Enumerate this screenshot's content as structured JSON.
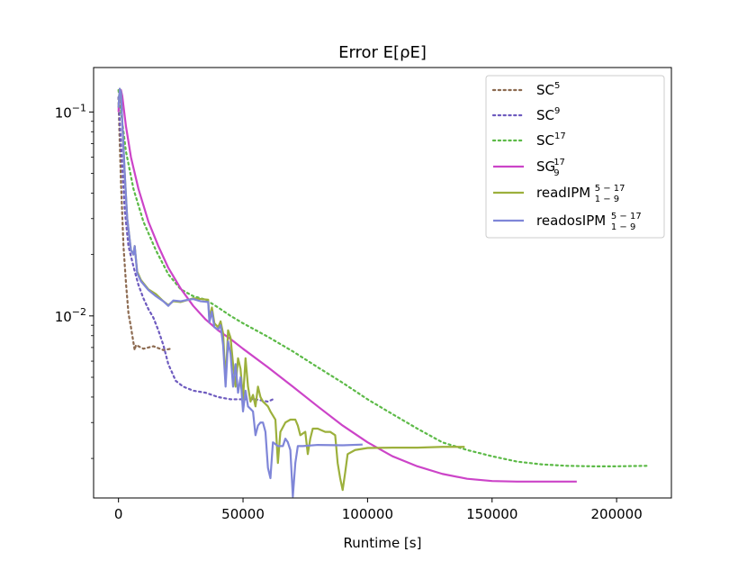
{
  "chart_data": {
    "type": "line",
    "title": "Error E[ρE]",
    "xlabel": "Runtime [s]",
    "ylabel": "",
    "xlim": [
      -10000,
      222000
    ],
    "ylim": [
      0.00128,
      0.1652
    ],
    "yscale": "log",
    "grid": false,
    "legend_position": "top-right",
    "x_ticks": [
      0,
      50000,
      100000,
      150000,
      200000
    ],
    "x_tick_labels": [
      "0",
      "50000",
      "100000",
      "150000",
      "200000"
    ],
    "y_ticks": [
      0.1,
      0.01
    ],
    "y_tick_labels": [
      {
        "base": "10",
        "exp": "−1"
      },
      {
        "base": "10",
        "exp": "−2"
      }
    ],
    "series": [
      {
        "name": "SC",
        "sup": "5",
        "sub": "",
        "color": "#8c6a50",
        "style": "dotted",
        "points": [
          [
            0,
            0.118
          ],
          [
            300,
            0.085
          ],
          [
            1000,
            0.045
          ],
          [
            2000,
            0.022
          ],
          [
            3000,
            0.0145
          ],
          [
            4000,
            0.0103
          ],
          [
            5000,
            0.0088
          ],
          [
            6000,
            0.0074
          ],
          [
            6500,
            0.0068
          ],
          [
            7000,
            0.0072
          ],
          [
            8000,
            0.0071
          ],
          [
            10000,
            0.0069
          ],
          [
            14000,
            0.0071
          ],
          [
            18000,
            0.0068
          ],
          [
            21000,
            0.0069
          ]
        ]
      },
      {
        "name": "SC",
        "sup": "9",
        "sub": "",
        "color": "#6e5bbf",
        "style": "dotted",
        "points": [
          [
            0,
            0.118
          ],
          [
            500,
            0.09
          ],
          [
            1500,
            0.055
          ],
          [
            2500,
            0.033
          ],
          [
            4000,
            0.022
          ],
          [
            6000,
            0.0175
          ],
          [
            8000,
            0.0142
          ],
          [
            10000,
            0.0122
          ],
          [
            12000,
            0.0108
          ],
          [
            14000,
            0.0098
          ],
          [
            16000,
            0.0085
          ],
          [
            18000,
            0.0072
          ],
          [
            20000,
            0.0058
          ],
          [
            23000,
            0.0048
          ],
          [
            26000,
            0.0045
          ],
          [
            30000,
            0.0043
          ],
          [
            35000,
            0.0042
          ],
          [
            40000,
            0.004
          ],
          [
            45000,
            0.0039
          ],
          [
            50000,
            0.0039
          ],
          [
            55000,
            0.0039
          ],
          [
            60000,
            0.0038
          ],
          [
            62000,
            0.0039
          ]
        ]
      },
      {
        "name": "SC",
        "sup": "17",
        "sub": "",
        "color": "#5cba47",
        "style": "dotted",
        "points": [
          [
            0,
            0.128
          ],
          [
            1000,
            0.1
          ],
          [
            3000,
            0.064
          ],
          [
            6000,
            0.042
          ],
          [
            10000,
            0.029
          ],
          [
            15000,
            0.021
          ],
          [
            20000,
            0.016
          ],
          [
            25000,
            0.0135
          ],
          [
            30000,
            0.0125
          ],
          [
            35000,
            0.012
          ],
          [
            40000,
            0.011
          ],
          [
            45000,
            0.01
          ],
          [
            50000,
            0.0092
          ],
          [
            60000,
            0.0079
          ],
          [
            70000,
            0.0067
          ],
          [
            80000,
            0.0056
          ],
          [
            90000,
            0.0047
          ],
          [
            100000,
            0.0039
          ],
          [
            110000,
            0.0033
          ],
          [
            120000,
            0.0028
          ],
          [
            130000,
            0.0024
          ],
          [
            140000,
            0.0022
          ],
          [
            150000,
            0.00205
          ],
          [
            160000,
            0.00193
          ],
          [
            170000,
            0.00187
          ],
          [
            180000,
            0.00184
          ],
          [
            190000,
            0.00183
          ],
          [
            200000,
            0.00183
          ],
          [
            212000,
            0.00184
          ]
        ]
      },
      {
        "name": "SG",
        "sup": "17",
        "sub": "9",
        "color": "#cc44c8",
        "style": "solid",
        "points": [
          [
            0,
            0.1
          ],
          [
            500,
            0.125
          ],
          [
            1000,
            0.128
          ],
          [
            1500,
            0.12
          ],
          [
            3000,
            0.085
          ],
          [
            5000,
            0.06
          ],
          [
            8000,
            0.042
          ],
          [
            12000,
            0.029
          ],
          [
            16000,
            0.022
          ],
          [
            20000,
            0.0172
          ],
          [
            25000,
            0.0136
          ],
          [
            30000,
            0.0112
          ],
          [
            35000,
            0.0096
          ],
          [
            40000,
            0.0085
          ],
          [
            45000,
            0.0077
          ],
          [
            50000,
            0.0069
          ],
          [
            60000,
            0.0056
          ],
          [
            70000,
            0.0045
          ],
          [
            80000,
            0.0036
          ],
          [
            90000,
            0.0029
          ],
          [
            100000,
            0.0024
          ],
          [
            110000,
            0.00205
          ],
          [
            120000,
            0.00183
          ],
          [
            130000,
            0.00168
          ],
          [
            140000,
            0.00159
          ],
          [
            150000,
            0.00155
          ],
          [
            160000,
            0.00154
          ],
          [
            170000,
            0.00154
          ],
          [
            184000,
            0.00154
          ]
        ]
      },
      {
        "name": "readIPM",
        "sup": "5 − 17",
        "sub": "1 − 9",
        "color": "#9cb03c",
        "style": "solid",
        "points": [
          [
            0,
            0.105
          ],
          [
            500,
            0.13
          ],
          [
            1000,
            0.125
          ],
          [
            1500,
            0.09
          ],
          [
            2500,
            0.05
          ],
          [
            3500,
            0.03
          ],
          [
            5000,
            0.021
          ],
          [
            6000,
            0.02
          ],
          [
            6500,
            0.022
          ],
          [
            7500,
            0.0165
          ],
          [
            9000,
            0.015
          ],
          [
            12000,
            0.0135
          ],
          [
            15000,
            0.0128
          ],
          [
            18000,
            0.0118
          ],
          [
            20000,
            0.0113
          ],
          [
            22000,
            0.0118
          ],
          [
            25000,
            0.0117
          ],
          [
            28000,
            0.012
          ],
          [
            30000,
            0.0122
          ],
          [
            33000,
            0.0121
          ],
          [
            36000,
            0.012
          ],
          [
            36500,
            0.0097
          ],
          [
            37500,
            0.011
          ],
          [
            38500,
            0.0092
          ],
          [
            40000,
            0.0088
          ],
          [
            41000,
            0.0094
          ],
          [
            42000,
            0.0082
          ],
          [
            43000,
            0.0048
          ],
          [
            44000,
            0.0085
          ],
          [
            45000,
            0.0078
          ],
          [
            46000,
            0.0058
          ],
          [
            47000,
            0.0045
          ],
          [
            48000,
            0.0062
          ],
          [
            49000,
            0.0055
          ],
          [
            50000,
            0.0039
          ],
          [
            51000,
            0.0062
          ],
          [
            52000,
            0.0045
          ],
          [
            53000,
            0.0038
          ],
          [
            54000,
            0.0041
          ],
          [
            55000,
            0.0036
          ],
          [
            56000,
            0.0045
          ],
          [
            57000,
            0.004
          ],
          [
            58000,
            0.0038
          ],
          [
            59000,
            0.0037
          ],
          [
            60000,
            0.0036
          ],
          [
            61000,
            0.0034
          ],
          [
            63000,
            0.0031
          ],
          [
            64000,
            0.0019
          ],
          [
            65000,
            0.0027
          ],
          [
            67000,
            0.003
          ],
          [
            69000,
            0.0031
          ],
          [
            71000,
            0.0031
          ],
          [
            72000,
            0.0029
          ],
          [
            73000,
            0.0026
          ],
          [
            75000,
            0.0027
          ],
          [
            76000,
            0.0021
          ],
          [
            77000,
            0.0025
          ],
          [
            78000,
            0.0028
          ],
          [
            80000,
            0.0028
          ],
          [
            83000,
            0.0027
          ],
          [
            85000,
            0.0027
          ],
          [
            87000,
            0.0026
          ],
          [
            88000,
            0.0019
          ],
          [
            89000,
            0.0016
          ],
          [
            90000,
            0.0014
          ],
          [
            91000,
            0.0017
          ],
          [
            92000,
            0.0021
          ],
          [
            95000,
            0.0022
          ],
          [
            100000,
            0.00225
          ],
          [
            110000,
            0.00226
          ],
          [
            120000,
            0.00226
          ],
          [
            130000,
            0.00228
          ],
          [
            139000,
            0.00228
          ]
        ]
      },
      {
        "name": "readosIPM",
        "sup": "5 − 17",
        "sub": "1 − 9",
        "color": "#7f86d8",
        "style": "solid",
        "points": [
          [
            0,
            0.105
          ],
          [
            500,
            0.13
          ],
          [
            1000,
            0.125
          ],
          [
            1500,
            0.09
          ],
          [
            2500,
            0.05
          ],
          [
            3500,
            0.03
          ],
          [
            5000,
            0.021
          ],
          [
            6000,
            0.02
          ],
          [
            6500,
            0.022
          ],
          [
            7500,
            0.0162
          ],
          [
            9000,
            0.0148
          ],
          [
            12000,
            0.0134
          ],
          [
            15000,
            0.0125
          ],
          [
            18000,
            0.0118
          ],
          [
            20000,
            0.0112
          ],
          [
            22000,
            0.0119
          ],
          [
            25000,
            0.0118
          ],
          [
            28000,
            0.012
          ],
          [
            30000,
            0.0121
          ],
          [
            33000,
            0.0118
          ],
          [
            36000,
            0.0117
          ],
          [
            36500,
            0.0093
          ],
          [
            37500,
            0.0105
          ],
          [
            38500,
            0.0088
          ],
          [
            40000,
            0.0086
          ],
          [
            41000,
            0.009
          ],
          [
            42000,
            0.0072
          ],
          [
            43000,
            0.0045
          ],
          [
            44000,
            0.0075
          ],
          [
            45000,
            0.0065
          ],
          [
            46000,
            0.0045
          ],
          [
            47000,
            0.0058
          ],
          [
            48000,
            0.0042
          ],
          [
            49000,
            0.005
          ],
          [
            50000,
            0.0034
          ],
          [
            51000,
            0.0043
          ],
          [
            52000,
            0.0036
          ],
          [
            53000,
            0.0035
          ],
          [
            54000,
            0.0034
          ],
          [
            55000,
            0.0026
          ],
          [
            56000,
            0.0029
          ],
          [
            57000,
            0.003
          ],
          [
            58000,
            0.003
          ],
          [
            59000,
            0.0027
          ],
          [
            60000,
            0.0018
          ],
          [
            61000,
            0.0016
          ],
          [
            62000,
            0.0024
          ],
          [
            64000,
            0.0023
          ],
          [
            66000,
            0.0023
          ],
          [
            67000,
            0.0025
          ],
          [
            68000,
            0.0024
          ],
          [
            69000,
            0.0022
          ],
          [
            70000,
            0.0013
          ],
          [
            71000,
            0.0019
          ],
          [
            72000,
            0.0023
          ],
          [
            74000,
            0.0023
          ],
          [
            80000,
            0.00233
          ],
          [
            90000,
            0.00232
          ],
          [
            98000,
            0.00234
          ]
        ]
      }
    ]
  }
}
